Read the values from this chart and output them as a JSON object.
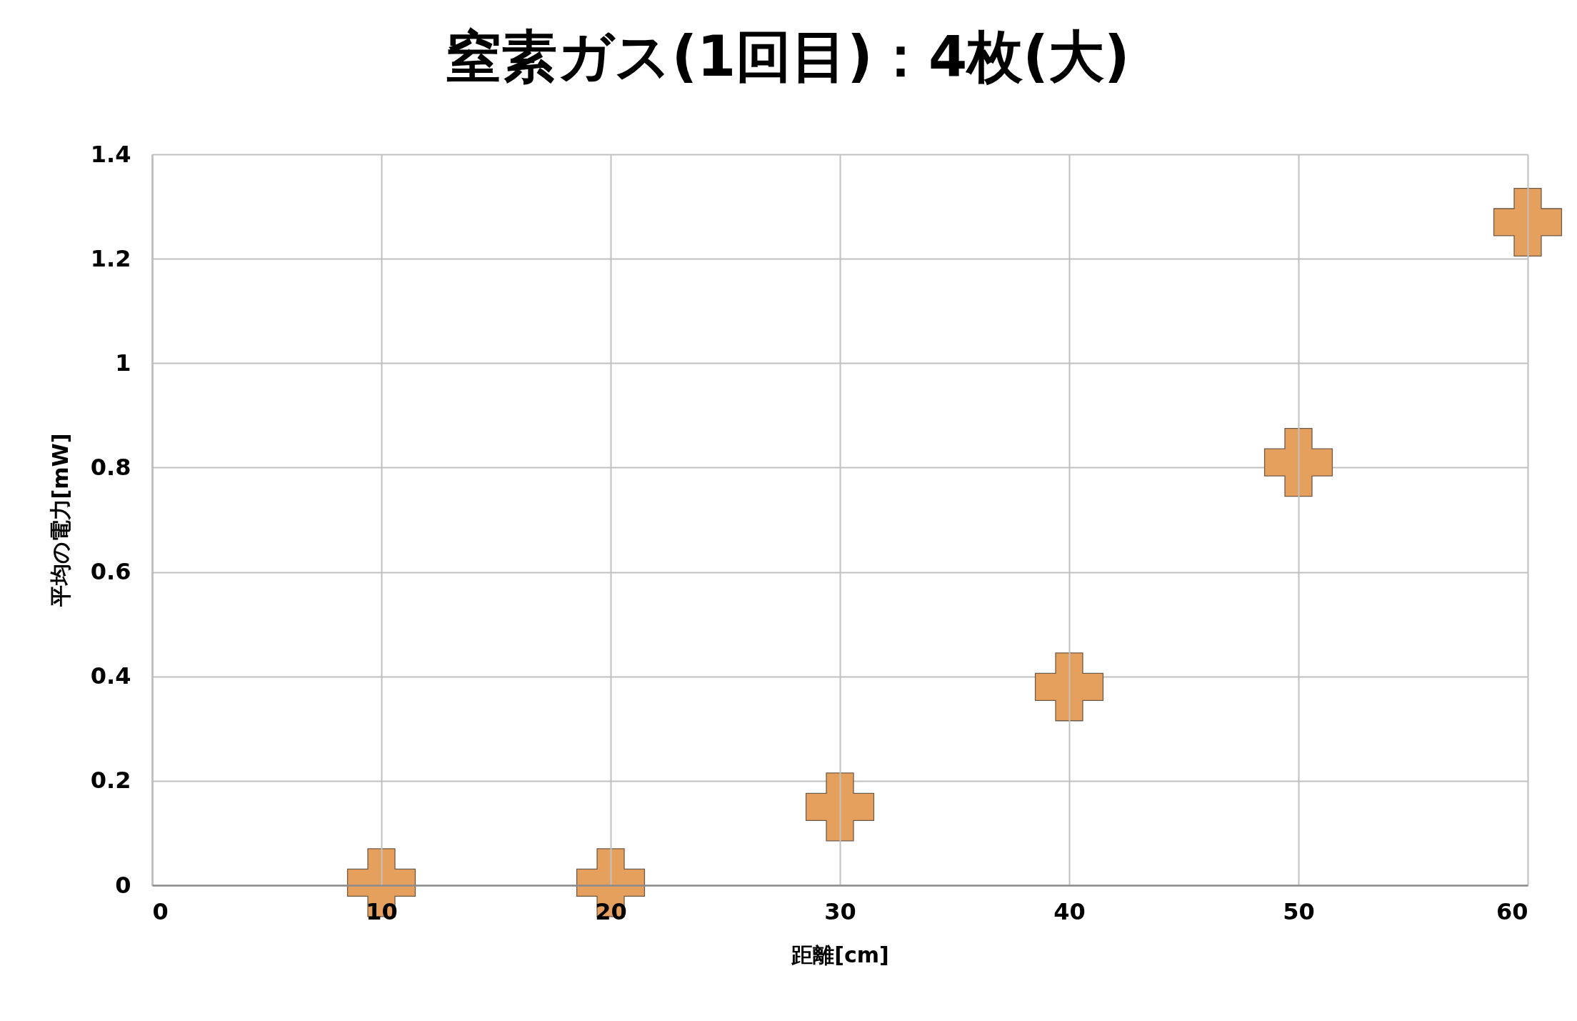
{
  "chart_data": {
    "type": "scatter",
    "title": "窒素ガス(1回目)：4枚(大)",
    "xlabel": "距離[cm]",
    "ylabel": "平均の電力[mW]",
    "x": [
      10,
      20,
      30,
      40,
      50,
      60
    ],
    "series": [
      {
        "color": "#e6a05e",
        "values": [
          0.005,
          0.005,
          0.15,
          0.38,
          0.81,
          1.27
        ]
      }
    ],
    "xlim": [
      0,
      60
    ],
    "ylim": [
      0,
      1.4
    ],
    "xticks": [
      0,
      10,
      20,
      30,
      40,
      50,
      60
    ],
    "yticks": [
      0,
      0.2,
      0.4,
      0.6,
      0.8,
      1,
      1.2,
      1.4
    ],
    "grid": true,
    "marker": "cross"
  }
}
